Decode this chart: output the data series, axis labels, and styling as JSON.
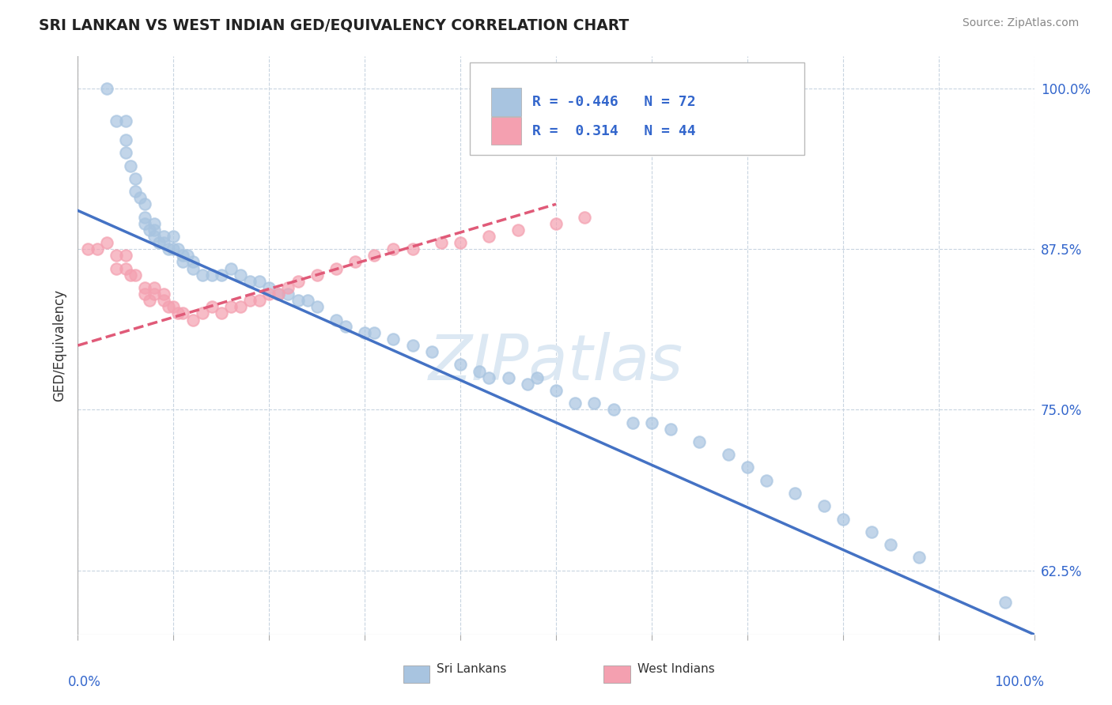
{
  "title": "SRI LANKAN VS WEST INDIAN GED/EQUIVALENCY CORRELATION CHART",
  "source": "Source: ZipAtlas.com",
  "ylabel": "GED/Equivalency",
  "xlim": [
    0.0,
    1.0
  ],
  "ylim": [
    0.575,
    1.025
  ],
  "sri_lankans_color": "#a8c4e0",
  "west_indians_color": "#f4a0b0",
  "sri_lankans_line_color": "#4472c4",
  "west_indians_line_color": "#e05a78",
  "legend_text_color": "#3366cc",
  "watermark_color": "#dce8f3",
  "sri_R": -0.446,
  "sri_N": 72,
  "wi_R": 0.314,
  "wi_N": 44,
  "sri_line_x0": 0.0,
  "sri_line_y0": 0.905,
  "sri_line_x1": 1.0,
  "sri_line_y1": 0.575,
  "wi_line_x0": 0.0,
  "wi_line_y0": 0.8,
  "wi_line_x1": 0.5,
  "wi_line_y1": 0.91,
  "sri_scatter_x": [
    0.03,
    0.04,
    0.05,
    0.05,
    0.05,
    0.055,
    0.06,
    0.06,
    0.065,
    0.07,
    0.07,
    0.07,
    0.075,
    0.08,
    0.08,
    0.08,
    0.085,
    0.09,
    0.09,
    0.095,
    0.1,
    0.1,
    0.105,
    0.11,
    0.11,
    0.115,
    0.12,
    0.12,
    0.13,
    0.14,
    0.15,
    0.16,
    0.17,
    0.18,
    0.19,
    0.2,
    0.21,
    0.22,
    0.23,
    0.24,
    0.25,
    0.27,
    0.28,
    0.3,
    0.31,
    0.33,
    0.35,
    0.37,
    0.4,
    0.42,
    0.43,
    0.45,
    0.47,
    0.48,
    0.5,
    0.52,
    0.54,
    0.56,
    0.58,
    0.6,
    0.62,
    0.65,
    0.68,
    0.7,
    0.72,
    0.75,
    0.78,
    0.8,
    0.83,
    0.85,
    0.88,
    0.97
  ],
  "sri_scatter_y": [
    1.0,
    0.975,
    0.975,
    0.96,
    0.95,
    0.94,
    0.93,
    0.92,
    0.915,
    0.91,
    0.9,
    0.895,
    0.89,
    0.895,
    0.89,
    0.885,
    0.88,
    0.885,
    0.88,
    0.875,
    0.885,
    0.875,
    0.875,
    0.87,
    0.865,
    0.87,
    0.865,
    0.86,
    0.855,
    0.855,
    0.855,
    0.86,
    0.855,
    0.85,
    0.85,
    0.845,
    0.84,
    0.84,
    0.835,
    0.835,
    0.83,
    0.82,
    0.815,
    0.81,
    0.81,
    0.805,
    0.8,
    0.795,
    0.785,
    0.78,
    0.775,
    0.775,
    0.77,
    0.775,
    0.765,
    0.755,
    0.755,
    0.75,
    0.74,
    0.74,
    0.735,
    0.725,
    0.715,
    0.705,
    0.695,
    0.685,
    0.675,
    0.665,
    0.655,
    0.645,
    0.635,
    0.6
  ],
  "wi_scatter_x": [
    0.01,
    0.02,
    0.03,
    0.04,
    0.04,
    0.05,
    0.05,
    0.055,
    0.06,
    0.07,
    0.07,
    0.075,
    0.08,
    0.08,
    0.09,
    0.09,
    0.095,
    0.1,
    0.105,
    0.11,
    0.12,
    0.13,
    0.14,
    0.15,
    0.16,
    0.17,
    0.18,
    0.19,
    0.2,
    0.21,
    0.22,
    0.23,
    0.25,
    0.27,
    0.29,
    0.31,
    0.33,
    0.35,
    0.38,
    0.4,
    0.43,
    0.46,
    0.5,
    0.53
  ],
  "wi_scatter_y": [
    0.875,
    0.875,
    0.88,
    0.87,
    0.86,
    0.87,
    0.86,
    0.855,
    0.855,
    0.845,
    0.84,
    0.835,
    0.845,
    0.84,
    0.84,
    0.835,
    0.83,
    0.83,
    0.825,
    0.825,
    0.82,
    0.825,
    0.83,
    0.825,
    0.83,
    0.83,
    0.835,
    0.835,
    0.84,
    0.84,
    0.845,
    0.85,
    0.855,
    0.86,
    0.865,
    0.87,
    0.875,
    0.875,
    0.88,
    0.88,
    0.885,
    0.89,
    0.895,
    0.9
  ],
  "ytick_positions": [
    0.625,
    0.75,
    0.875,
    1.0
  ],
  "ytick_labels": [
    "62.5%",
    "75.0%",
    "87.5%",
    "100.0%"
  ]
}
